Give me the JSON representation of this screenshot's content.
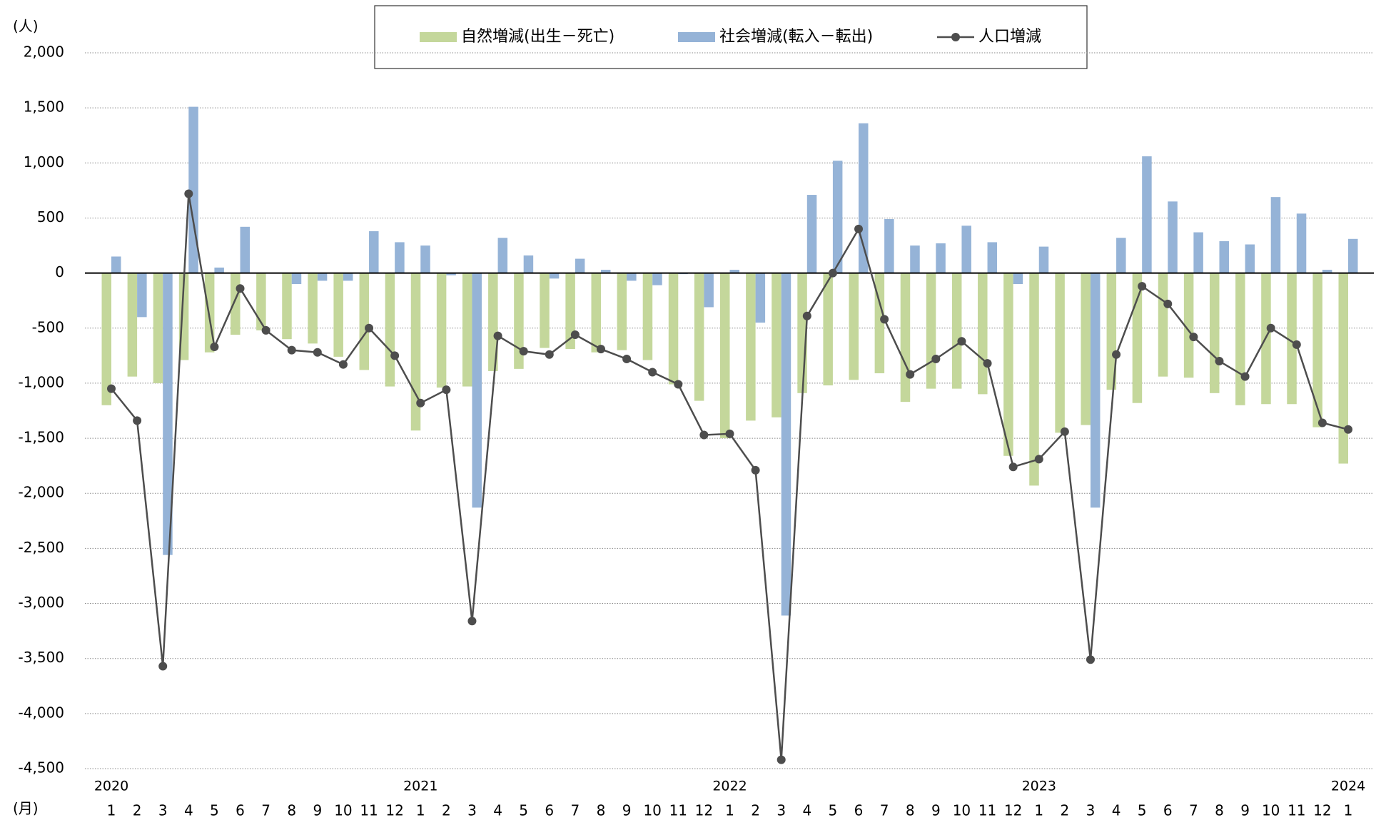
{
  "chart_data": {
    "type": "bar-line",
    "y_unit": "(人)",
    "x_unit": "(月)",
    "categories": [
      "1",
      "2",
      "3",
      "4",
      "5",
      "6",
      "7",
      "8",
      "9",
      "10",
      "11",
      "12",
      "1",
      "2",
      "3",
      "4",
      "5",
      "6",
      "7",
      "8",
      "9",
      "10",
      "11",
      "12",
      "1",
      "2",
      "3",
      "4",
      "5",
      "6",
      "7",
      "8",
      "9",
      "10",
      "11",
      "12",
      "1",
      "2",
      "3",
      "4",
      "5",
      "6",
      "7",
      "8",
      "9",
      "10",
      "11",
      "12",
      "1"
    ],
    "years": [
      "2020",
      null,
      null,
      null,
      null,
      null,
      null,
      null,
      null,
      null,
      null,
      null,
      "2021",
      null,
      null,
      null,
      null,
      null,
      null,
      null,
      null,
      null,
      null,
      null,
      "2022",
      null,
      null,
      null,
      null,
      null,
      null,
      null,
      null,
      null,
      null,
      null,
      "2023",
      null,
      null,
      null,
      null,
      null,
      null,
      null,
      null,
      null,
      null,
      null,
      "2024"
    ],
    "series": [
      {
        "name": "自然増減(出生－死亡)",
        "color": "#c4d79b",
        "kind": "bar",
        "values": [
          -1200,
          -940,
          -1000,
          -790,
          -720,
          -560,
          -520,
          -600,
          -640,
          -760,
          -880,
          -1030,
          -1430,
          -1040,
          -1030,
          -890,
          -870,
          -680,
          -690,
          -720,
          -700,
          -790,
          -1010,
          -1160,
          -1500,
          -1340,
          -1310,
          -1090,
          -1020,
          -970,
          -910,
          -1170,
          -1050,
          -1050,
          -1100,
          -1660,
          -1930,
          -1450,
          -1380,
          -1060,
          -1180,
          -940,
          -950,
          -1090,
          -1200,
          -1190,
          -1190,
          -1400,
          -1730
        ]
      },
      {
        "name": "社会増減(転入－転出)",
        "color": "#95b3d7",
        "kind": "bar",
        "values": [
          150,
          -400,
          -2560,
          1510,
          50,
          420,
          -5,
          -100,
          -70,
          -70,
          380,
          280,
          250,
          -20,
          -2130,
          320,
          160,
          -50,
          130,
          30,
          -70,
          -110,
          -10,
          -310,
          30,
          -450,
          -3110,
          710,
          1020,
          1360,
          490,
          250,
          270,
          430,
          280,
          -100,
          240,
          0,
          -2130,
          320,
          1060,
          650,
          370,
          290,
          260,
          690,
          540,
          30,
          310
        ]
      },
      {
        "name": "人口増減",
        "color": "#4d4d4d",
        "kind": "line",
        "values": [
          -1050,
          -1340,
          -3570,
          720,
          -670,
          -140,
          -520,
          -700,
          -720,
          -830,
          -500,
          -750,
          -1180,
          -1060,
          -3160,
          -570,
          -710,
          -740,
          -560,
          -690,
          -780,
          -900,
          -1010,
          -1470,
          -1460,
          -1790,
          -4420,
          -390,
          0,
          400,
          -420,
          -920,
          -780,
          -620,
          -820,
          -1760,
          -1690,
          -1440,
          -3510,
          -740,
          -120,
          -280,
          -580,
          -800,
          -940,
          -500,
          -650,
          -1360,
          -1420
        ]
      }
    ],
    "ylim": [
      -4500,
      2000
    ],
    "yticks": [
      {
        "value": -4500,
        "label": "-4,500"
      },
      {
        "value": -4000,
        "label": "-4,000"
      },
      {
        "value": -3500,
        "label": "-3,500"
      },
      {
        "value": -3000,
        "label": "-3,000"
      },
      {
        "value": -2500,
        "label": "-2,500"
      },
      {
        "value": -2000,
        "label": "-2,000"
      },
      {
        "value": -1500,
        "label": "-1,500"
      },
      {
        "value": -1000,
        "label": "-1,000"
      },
      {
        "value": -500,
        "label": "-500"
      },
      0,
      {
        "value": 500,
        "label": "500"
      },
      {
        "value": 1000,
        "label": "1,000"
      },
      {
        "value": 1500,
        "label": "1,500"
      },
      {
        "value": 2000,
        "label": "2,000"
      }
    ],
    "grid": true,
    "legend": "top"
  }
}
